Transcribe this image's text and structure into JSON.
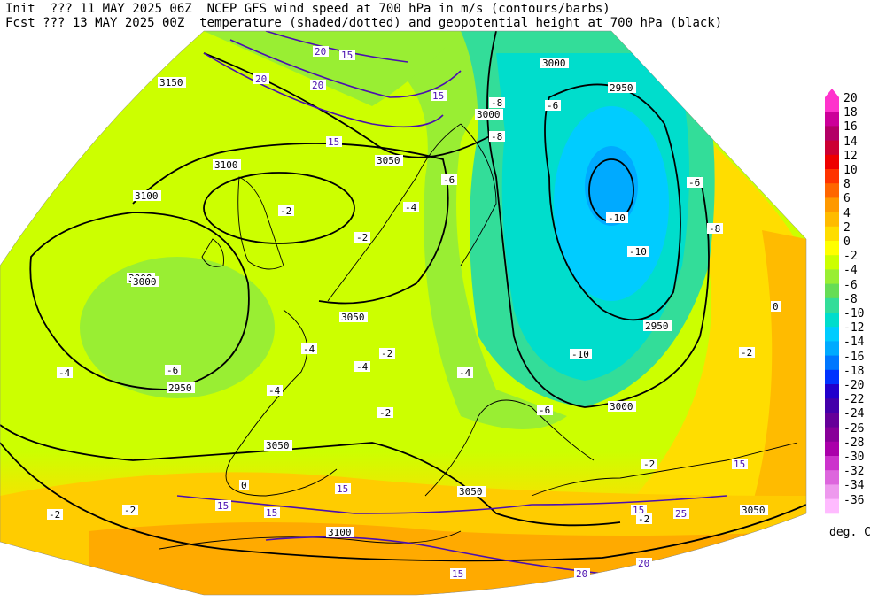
{
  "header": {
    "init_line": "Init  ??? 11 MAY 2025 06Z  NCEP GFS wind speed at 700 hPa in m/s (contours/barbs)",
    "fcst_line": "Fcst ??? 13 MAY 2025 00Z  temperature (shaded/dotted) and geopotential height at 700 hPa (black)"
  },
  "colorbar": {
    "levels": [
      "20",
      "18",
      "16",
      "14",
      "12",
      "10",
      "8",
      "6",
      "4",
      "2",
      "0",
      "-2",
      "-4",
      "-6",
      "-8",
      "-10",
      "-12",
      "-14",
      "-16",
      "-18",
      "-20",
      "-22",
      "-24",
      "-26",
      "-28",
      "-30",
      "-32",
      "-34",
      "-36"
    ],
    "colors": [
      "#ff33cc",
      "#cc0099",
      "#b30066",
      "#cc0033",
      "#ee0000",
      "#ff3300",
      "#ff6600",
      "#ff9900",
      "#ffbb00",
      "#ffdd00",
      "#ffff00",
      "#ccff00",
      "#99ee33",
      "#66dd55",
      "#33dd99",
      "#00ddcc",
      "#00ccff",
      "#00aaff",
      "#0077ff",
      "#0033ff",
      "#2200cc",
      "#4400aa",
      "#660099",
      "#880099",
      "#aa00aa",
      "#cc33cc",
      "#dd66dd",
      "#ee99ee",
      "#ffbbff"
    ],
    "unit": "deg. C"
  },
  "height_labels": [
    "3150",
    "3100",
    "3050",
    "3000",
    "2950",
    "3000",
    "3100",
    "3050",
    "3000",
    "3050",
    "3100",
    "2950",
    "3050",
    "2950",
    "3000",
    "3000",
    "3050",
    "3050"
  ],
  "temp_labels": [
    "-2",
    "-4",
    "-6",
    "-8",
    "-10",
    "-10",
    "-10",
    "-6",
    "-4",
    "-4",
    "-4",
    "-4",
    "-2",
    "-2",
    "-2",
    "-2",
    "-4",
    "-6",
    "-8",
    "-6",
    "-6",
    "-8",
    "0",
    "-2",
    "-2",
    "0",
    "-2",
    "-2"
  ],
  "wind_labels": [
    "20",
    "15",
    "20",
    "15",
    "20",
    "15",
    "15",
    "15",
    "15",
    "25",
    "15",
    "20",
    "15",
    "20",
    "15"
  ]
}
